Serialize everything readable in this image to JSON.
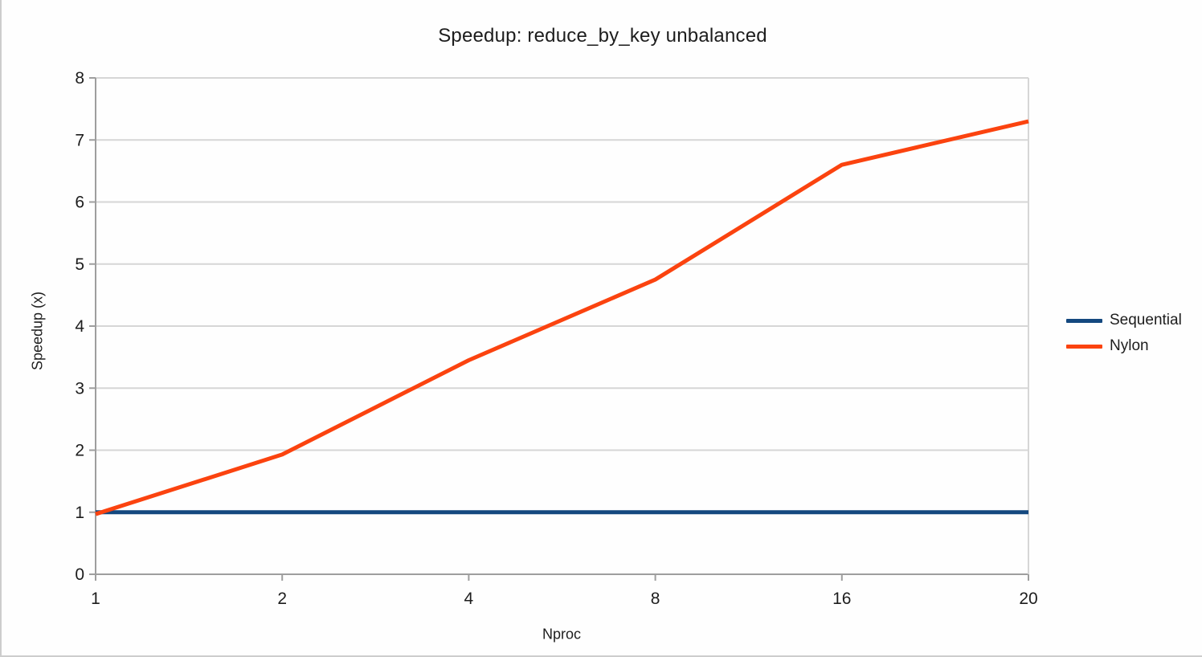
{
  "chart_data": {
    "type": "line",
    "title": "Speedup: reduce_by_key unbalanced",
    "xlabel": "Nproc",
    "ylabel": "Speedup (x)",
    "x_axis_type": "category",
    "categories": [
      "1",
      "2",
      "4",
      "8",
      "16",
      "20"
    ],
    "series": [
      {
        "name": "Sequential",
        "color": "#14487F",
        "values": [
          1,
          1,
          1,
          1,
          1,
          1
        ]
      },
      {
        "name": "Nylon",
        "color": "#FB430F",
        "values": [
          0.97,
          1.93,
          3.45,
          4.75,
          6.6,
          7.3
        ]
      }
    ],
    "ylim": [
      0,
      8
    ],
    "ytick_step": 1,
    "yticks": [
      "0",
      "1",
      "2",
      "3",
      "4",
      "5",
      "6",
      "7",
      "8"
    ],
    "grid": "horizontal-only",
    "legend_position": "right",
    "colors": {
      "gridline": "#d6d6d6",
      "axis": "#9e9e9e",
      "text": "#1d1d1d",
      "background": "#fefefe"
    }
  }
}
